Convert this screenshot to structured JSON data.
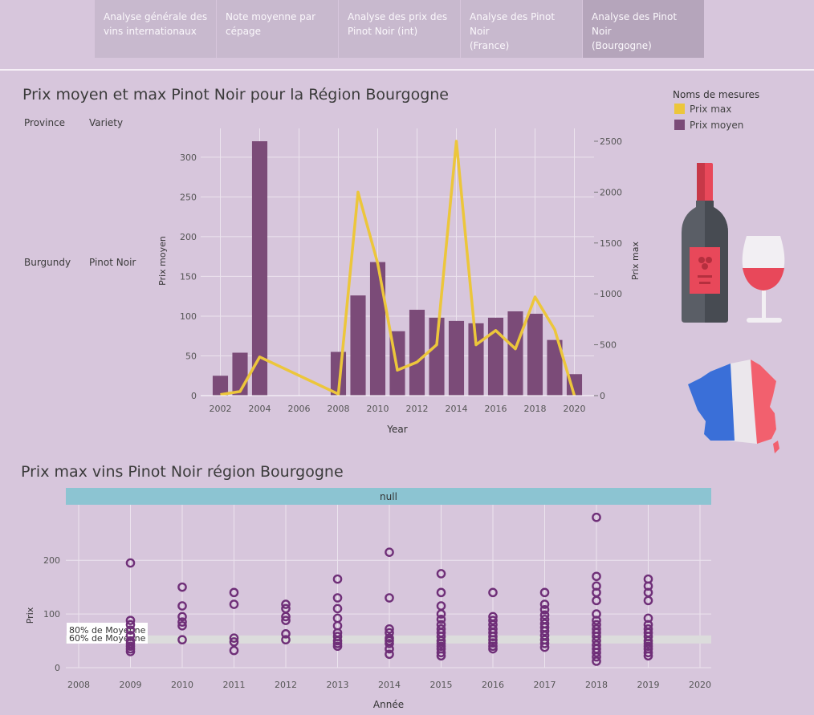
{
  "tabs": [
    {
      "line1": "Analyse générale des",
      "line2": "vins internationaux",
      "active": false
    },
    {
      "line1": "Note moyenne par",
      "line2": "cépage",
      "active": false
    },
    {
      "line1": "Analyse des prix des",
      "line2": "Pinot Noir (int)",
      "active": false
    },
    {
      "line1": "Analyse des Pinot Noir",
      "line2": "(France)",
      "active": false
    },
    {
      "line1": "Analyse des Pinot Noir",
      "line2": "(Bourgogne)",
      "active": true
    }
  ],
  "colors": {
    "avg": "#7b4b78",
    "max": "#ecc63b",
    "scatter": "#6f2f78",
    "band": "#8cc4d2"
  },
  "top": {
    "title": "Prix moyen et max Pinot Noir pour la Région Bourgogne",
    "col_province": "Province",
    "col_variety": "Variety",
    "province": "Burgundy",
    "variety": "Pinot Noir",
    "legend_title": "Noms de mesures",
    "legend_max": "Prix max",
    "legend_avg": "Prix moyen"
  },
  "bottom": {
    "title": "Prix max vins Pinot Noir région Bourgogne",
    "band_label": "null"
  },
  "icons": [
    "wine-bottle-icon",
    "wine-glass-icon",
    "france-map-icon"
  ],
  "chart_data": [
    {
      "type": "bar",
      "title": "Prix moyen et max Pinot Noir pour la Région Bourgogne",
      "xlabel": "Year",
      "ylabel": "Prix moyen",
      "y2label": "Prix max",
      "xlim": [
        2001,
        2021
      ],
      "ylim": [
        0,
        320
      ],
      "y2lim": [
        0,
        2500
      ],
      "yticks": [
        0,
        50,
        100,
        150,
        200,
        250,
        300
      ],
      "y2ticks": [
        0,
        500,
        1000,
        1500,
        2000,
        2500
      ],
      "y2tick_labels": [
        "0",
        "500",
        "1000",
        "1500",
        "2000",
        "2500"
      ],
      "xticks": [
        2002,
        2004,
        2006,
        2008,
        2010,
        2012,
        2014,
        2016,
        2018,
        2020
      ],
      "series": [
        {
          "name": "Prix moyen",
          "type": "bar",
          "axis": "left",
          "x": [
            2002,
            2003,
            2004,
            2008,
            2009,
            2010,
            2011,
            2012,
            2013,
            2014,
            2015,
            2016,
            2017,
            2018,
            2019,
            2020
          ],
          "values": [
            25,
            54,
            320,
            55,
            126,
            168,
            81,
            108,
            98,
            94,
            91,
            98,
            106,
            103,
            70,
            27
          ]
        },
        {
          "name": "Prix max",
          "type": "line",
          "axis": "right",
          "x": [
            2002,
            2003,
            2004,
            2008,
            2009,
            2010,
            2011,
            2012,
            2013,
            2014,
            2015,
            2016,
            2017,
            2018,
            2019,
            2020
          ],
          "values": [
            10,
            40,
            380,
            15,
            2000,
            1300,
            250,
            330,
            500,
            2500,
            500,
            640,
            460,
            970,
            650,
            0
          ]
        }
      ]
    },
    {
      "type": "scatter",
      "title": "Prix max vins Pinot Noir région Bourgogne",
      "xlabel": "Année",
      "ylabel": "Prix",
      "xlim": [
        2008,
        2020
      ],
      "ylim": [
        0,
        290
      ],
      "xticks": [
        2008,
        2009,
        2010,
        2011,
        2012,
        2013,
        2014,
        2015,
        2016,
        2017,
        2018,
        2019,
        2020
      ],
      "yticks": [
        0,
        100,
        200
      ],
      "reference_band": {
        "from": 45,
        "to": 60,
        "labels": [
          "80% de Moyenne",
          "60% de Moyenne"
        ]
      },
      "points": [
        [
          2009,
          195
        ],
        [
          2009,
          88
        ],
        [
          2009,
          80
        ],
        [
          2009,
          70
        ],
        [
          2009,
          60
        ],
        [
          2009,
          50
        ],
        [
          2009,
          45
        ],
        [
          2009,
          40
        ],
        [
          2009,
          35
        ],
        [
          2009,
          30
        ],
        [
          2010,
          150
        ],
        [
          2010,
          115
        ],
        [
          2010,
          95
        ],
        [
          2010,
          85
        ],
        [
          2010,
          78
        ],
        [
          2010,
          52
        ],
        [
          2011,
          140
        ],
        [
          2011,
          118
        ],
        [
          2011,
          55
        ],
        [
          2011,
          48
        ],
        [
          2011,
          32
        ],
        [
          2012,
          118
        ],
        [
          2012,
          110
        ],
        [
          2012,
          95
        ],
        [
          2012,
          88
        ],
        [
          2012,
          63
        ],
        [
          2012,
          52
        ],
        [
          2013,
          165
        ],
        [
          2013,
          130
        ],
        [
          2013,
          110
        ],
        [
          2013,
          92
        ],
        [
          2013,
          78
        ],
        [
          2013,
          65
        ],
        [
          2013,
          58
        ],
        [
          2013,
          50
        ],
        [
          2013,
          45
        ],
        [
          2013,
          40
        ],
        [
          2014,
          215
        ],
        [
          2014,
          130
        ],
        [
          2014,
          72
        ],
        [
          2014,
          65
        ],
        [
          2014,
          55
        ],
        [
          2014,
          50
        ],
        [
          2014,
          45
        ],
        [
          2014,
          35
        ],
        [
          2014,
          25
        ],
        [
          2015,
          175
        ],
        [
          2015,
          140
        ],
        [
          2015,
          115
        ],
        [
          2015,
          100
        ],
        [
          2015,
          90
        ],
        [
          2015,
          80
        ],
        [
          2015,
          72
        ],
        [
          2015,
          65
        ],
        [
          2015,
          58
        ],
        [
          2015,
          50
        ],
        [
          2015,
          45
        ],
        [
          2015,
          40
        ],
        [
          2015,
          35
        ],
        [
          2015,
          28
        ],
        [
          2015,
          22
        ],
        [
          2016,
          140
        ],
        [
          2016,
          95
        ],
        [
          2016,
          88
        ],
        [
          2016,
          80
        ],
        [
          2016,
          72
        ],
        [
          2016,
          65
        ],
        [
          2016,
          58
        ],
        [
          2016,
          52
        ],
        [
          2016,
          46
        ],
        [
          2016,
          40
        ],
        [
          2016,
          35
        ],
        [
          2017,
          140
        ],
        [
          2017,
          118
        ],
        [
          2017,
          108
        ],
        [
          2017,
          98
        ],
        [
          2017,
          90
        ],
        [
          2017,
          82
        ],
        [
          2017,
          75
        ],
        [
          2017,
          68
        ],
        [
          2017,
          60
        ],
        [
          2017,
          52
        ],
        [
          2017,
          45
        ],
        [
          2017,
          38
        ],
        [
          2018,
          280
        ],
        [
          2018,
          170
        ],
        [
          2018,
          152
        ],
        [
          2018,
          140
        ],
        [
          2018,
          125
        ],
        [
          2018,
          100
        ],
        [
          2018,
          88
        ],
        [
          2018,
          80
        ],
        [
          2018,
          72
        ],
        [
          2018,
          65
        ],
        [
          2018,
          58
        ],
        [
          2018,
          50
        ],
        [
          2018,
          42
        ],
        [
          2018,
          35
        ],
        [
          2018,
          28
        ],
        [
          2018,
          20
        ],
        [
          2018,
          12
        ],
        [
          2019,
          165
        ],
        [
          2019,
          152
        ],
        [
          2019,
          140
        ],
        [
          2019,
          125
        ],
        [
          2019,
          92
        ],
        [
          2019,
          80
        ],
        [
          2019,
          72
        ],
        [
          2019,
          65
        ],
        [
          2019,
          58
        ],
        [
          2019,
          50
        ],
        [
          2019,
          45
        ],
        [
          2019,
          40
        ],
        [
          2019,
          35
        ],
        [
          2019,
          28
        ],
        [
          2019,
          22
        ]
      ]
    }
  ]
}
